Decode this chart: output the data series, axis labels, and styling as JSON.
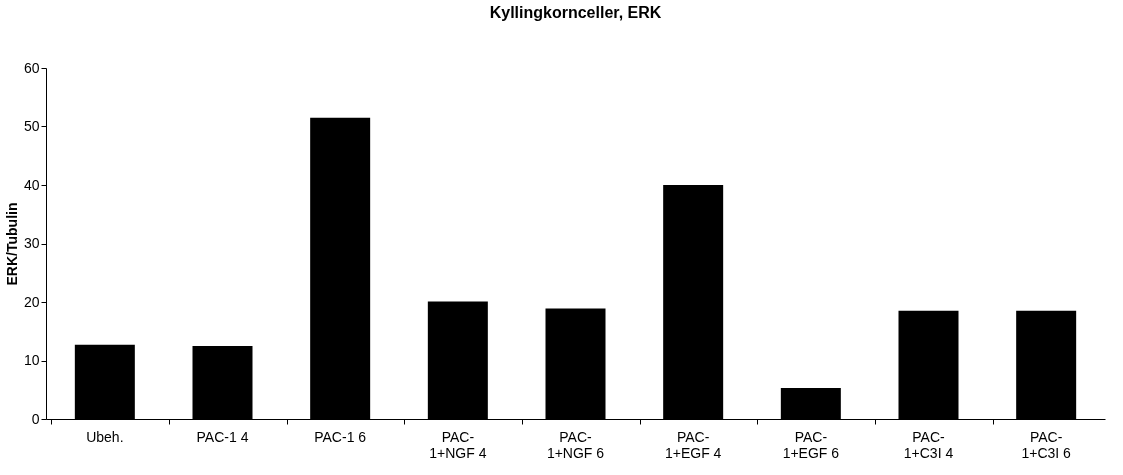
{
  "chart_data": {
    "type": "bar",
    "title": "Kyllingkornceller, ERK",
    "ylabel": "ERK/Tubulin",
    "categories": [
      "Ubeh.",
      "PAC-1 4",
      "PAC-1 6",
      "PAC-1+NGF 4",
      "PAC-1+NGF 6",
      "PAC-1+EGF 4",
      "PAC-1+EGF 6",
      "PAC-1+C3I 4",
      "PAC-1+C3I 6"
    ],
    "values": [
      12.7,
      12.5,
      51.5,
      20.1,
      18.9,
      40,
      5.3,
      18.5,
      18.5
    ],
    "color": "#000000",
    "ylim": [
      0,
      60
    ],
    "yticks": [
      0,
      10,
      20,
      30,
      40,
      50,
      60
    ],
    "grid": false
  }
}
